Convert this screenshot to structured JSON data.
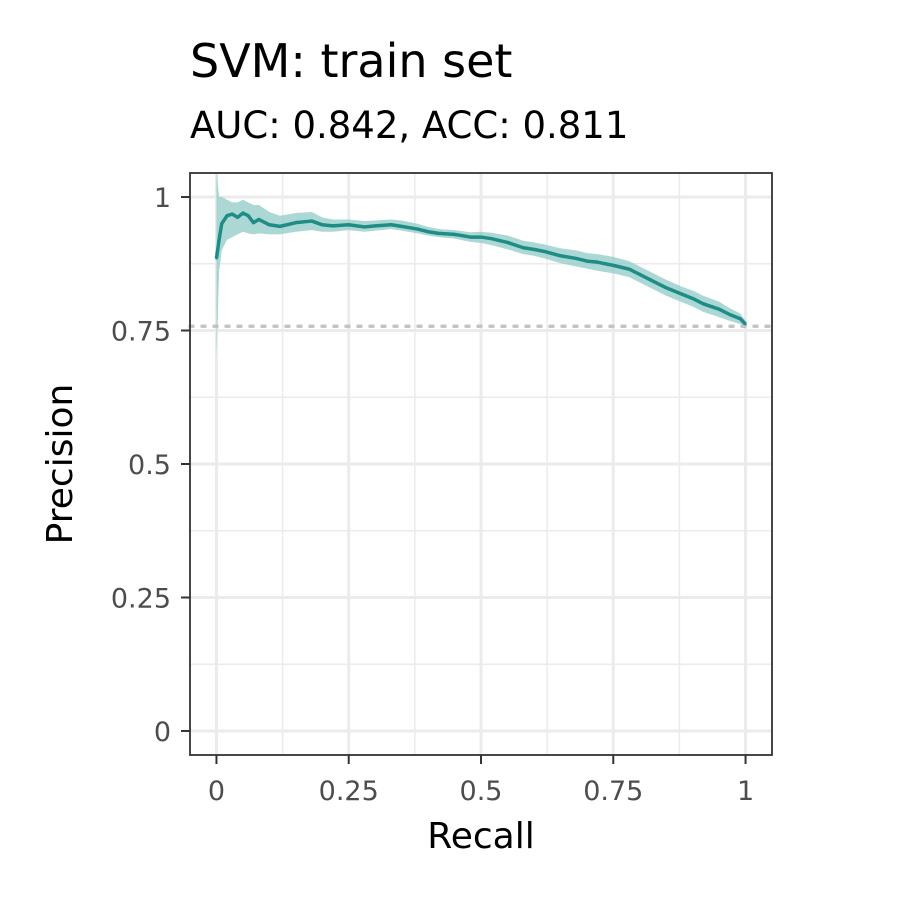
{
  "chart_data": {
    "type": "line",
    "title": "SVM: train set",
    "subtitle": "AUC: 0.842, ACC: 0.811",
    "xlabel": "Recall",
    "ylabel": "Precision",
    "xlim": [
      -0.05,
      1.05
    ],
    "ylim": [
      -0.045,
      1.045
    ],
    "x_ticks": [
      0,
      0.25,
      0.5,
      0.75,
      1
    ],
    "x_tick_labels": [
      "0",
      "0.25",
      "0.5",
      "0.75",
      "1"
    ],
    "y_ticks": [
      0,
      0.25,
      0.5,
      0.75,
      1
    ],
    "y_tick_labels": [
      "0",
      "0.25",
      "0.5",
      "0.75",
      "1"
    ],
    "grid": true,
    "baseline": 0.758,
    "line_color": "#1f8c85",
    "band_color": "#8fcbc6",
    "series": [
      {
        "x": [
          0,
          0.005,
          0.01,
          0.02,
          0.03,
          0.04,
          0.05,
          0.06,
          0.07,
          0.08,
          0.1,
          0.12,
          0.15,
          0.18,
          0.2,
          0.22,
          0.25,
          0.28,
          0.3,
          0.33,
          0.35,
          0.38,
          0.4,
          0.42,
          0.45,
          0.48,
          0.5,
          0.52,
          0.55,
          0.58,
          0.6,
          0.62,
          0.65,
          0.68,
          0.7,
          0.72,
          0.75,
          0.78,
          0.8,
          0.82,
          0.85,
          0.88,
          0.9,
          0.92,
          0.95,
          0.97,
          0.99,
          1.0
        ],
        "y": [
          0.885,
          0.92,
          0.95,
          0.965,
          0.968,
          0.962,
          0.97,
          0.965,
          0.952,
          0.958,
          0.948,
          0.945,
          0.952,
          0.955,
          0.948,
          0.946,
          0.948,
          0.944,
          0.946,
          0.948,
          0.945,
          0.94,
          0.935,
          0.932,
          0.93,
          0.925,
          0.925,
          0.922,
          0.915,
          0.905,
          0.902,
          0.898,
          0.89,
          0.885,
          0.88,
          0.878,
          0.872,
          0.865,
          0.855,
          0.845,
          0.83,
          0.818,
          0.81,
          0.8,
          0.79,
          0.78,
          0.772,
          0.762
        ],
        "lower": [
          0.7,
          0.86,
          0.9,
          0.92,
          0.925,
          0.93,
          0.935,
          0.932,
          0.93,
          0.932,
          0.93,
          0.93,
          0.935,
          0.938,
          0.935,
          0.935,
          0.938,
          0.935,
          0.937,
          0.94,
          0.937,
          0.932,
          0.928,
          0.925,
          0.922,
          0.916,
          0.914,
          0.91,
          0.902,
          0.893,
          0.89,
          0.885,
          0.876,
          0.87,
          0.866,
          0.862,
          0.857,
          0.85,
          0.84,
          0.83,
          0.815,
          0.803,
          0.795,
          0.785,
          0.775,
          0.768,
          0.762,
          0.756
        ],
        "upper": [
          1.05,
          1.0,
          1.0,
          0.995,
          0.99,
          0.99,
          0.995,
          0.99,
          0.985,
          0.985,
          0.972,
          0.965,
          0.97,
          0.972,
          0.962,
          0.958,
          0.958,
          0.955,
          0.956,
          0.958,
          0.956,
          0.95,
          0.944,
          0.94,
          0.938,
          0.934,
          0.935,
          0.933,
          0.928,
          0.918,
          0.915,
          0.911,
          0.904,
          0.9,
          0.895,
          0.893,
          0.888,
          0.88,
          0.87,
          0.86,
          0.845,
          0.832,
          0.825,
          0.815,
          0.804,
          0.792,
          0.782,
          0.768
        ]
      }
    ]
  }
}
